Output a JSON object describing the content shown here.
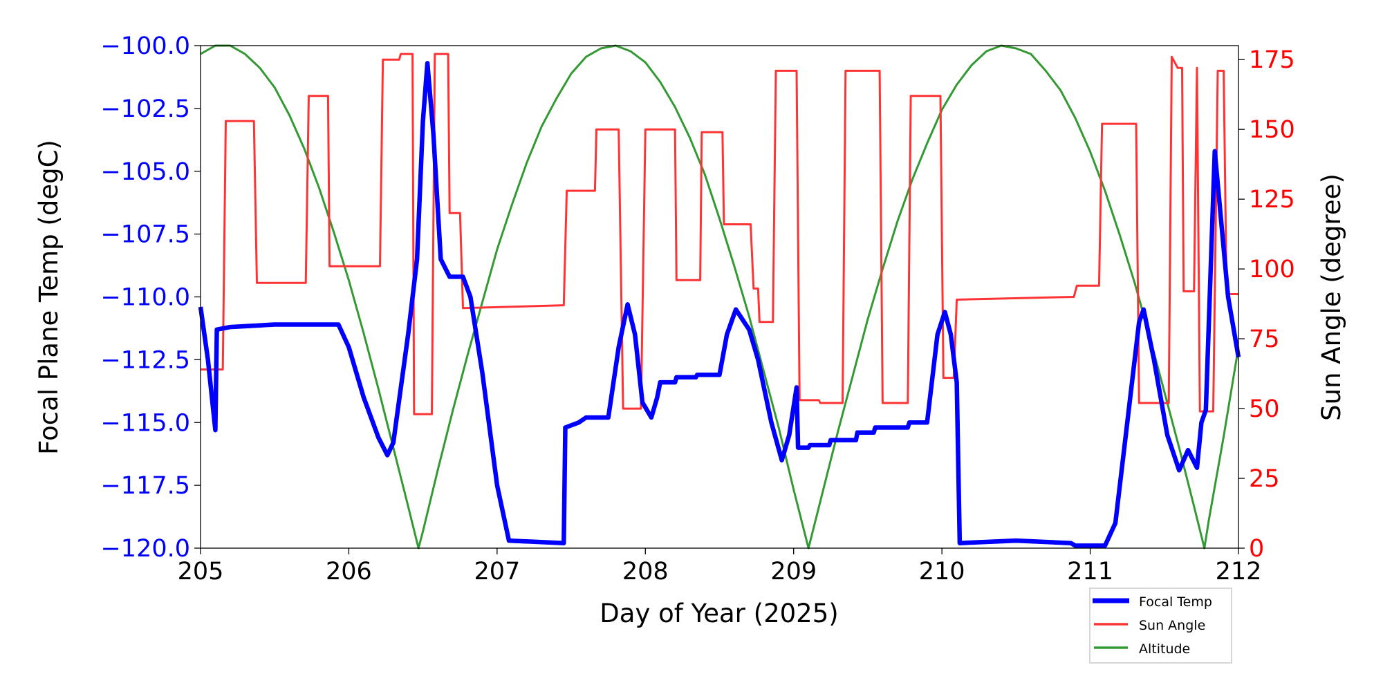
{
  "chart_data": {
    "type": "line",
    "xlabel": "Day of Year (2025)",
    "ylabel_left": "Focal Plane Temp (degC)",
    "ylabel_right": "Sun Angle (degree)",
    "xlim": [
      205,
      212
    ],
    "ylim_left": [
      -120,
      -100
    ],
    "ylim_right": [
      0,
      180
    ],
    "x_ticks": [
      205,
      206,
      207,
      208,
      209,
      210,
      211,
      212
    ],
    "y_ticks_left": [
      "−120.0",
      "−117.5",
      "−115.0",
      "−112.5",
      "−110.0",
      "−107.5",
      "−105.0",
      "−102.5",
      "−100.0"
    ],
    "y_ticks_left_values": [
      -120,
      -117.5,
      -115,
      -112.5,
      -110,
      -107.5,
      -105,
      -102.5,
      -100
    ],
    "y_ticks_right": [
      0,
      25,
      50,
      75,
      100,
      125,
      150,
      175
    ],
    "grid": false,
    "legend_placement": "below-right",
    "colors": {
      "left_ticks": "#0000ff",
      "right_ticks": "#ff0000"
    },
    "series": [
      {
        "name": "Focal Temp",
        "axis": "left",
        "color": "#0000ff",
        "points": [
          [
            205.0,
            -110.4
          ],
          [
            205.05,
            -112.5
          ],
          [
            205.1,
            -115.3
          ],
          [
            205.11,
            -111.3
          ],
          [
            205.2,
            -111.2
          ],
          [
            205.5,
            -111.1
          ],
          [
            205.93,
            -111.1
          ],
          [
            206.0,
            -112.0
          ],
          [
            206.1,
            -114.0
          ],
          [
            206.2,
            -115.6
          ],
          [
            206.26,
            -116.3
          ],
          [
            206.3,
            -115.8
          ],
          [
            206.4,
            -111.5
          ],
          [
            206.46,
            -108.5
          ],
          [
            206.5,
            -103.0
          ],
          [
            206.53,
            -100.7
          ],
          [
            206.57,
            -103.5
          ],
          [
            206.62,
            -108.5
          ],
          [
            206.68,
            -109.2
          ],
          [
            206.77,
            -109.2
          ],
          [
            206.82,
            -110.0
          ],
          [
            206.9,
            -113.0
          ],
          [
            207.0,
            -117.5
          ],
          [
            207.08,
            -119.7
          ],
          [
            207.45,
            -119.8
          ],
          [
            207.46,
            -115.2
          ],
          [
            207.55,
            -115.0
          ],
          [
            207.6,
            -114.8
          ],
          [
            207.75,
            -114.8
          ],
          [
            207.82,
            -112.0
          ],
          [
            207.88,
            -110.3
          ],
          [
            207.93,
            -111.5
          ],
          [
            207.98,
            -114.2
          ],
          [
            208.04,
            -114.8
          ],
          [
            208.08,
            -114.0
          ],
          [
            208.1,
            -113.4
          ],
          [
            208.2,
            -113.4
          ],
          [
            208.21,
            -113.2
          ],
          [
            208.34,
            -113.2
          ],
          [
            208.35,
            -113.1
          ],
          [
            208.5,
            -113.1
          ],
          [
            208.55,
            -111.5
          ],
          [
            208.61,
            -110.5
          ],
          [
            208.7,
            -111.3
          ],
          [
            208.76,
            -112.5
          ],
          [
            208.85,
            -115.0
          ],
          [
            208.92,
            -116.5
          ],
          [
            208.97,
            -115.5
          ],
          [
            209.02,
            -113.6
          ],
          [
            209.03,
            -116.0
          ],
          [
            209.1,
            -116.0
          ],
          [
            209.11,
            -115.9
          ],
          [
            209.24,
            -115.9
          ],
          [
            209.25,
            -115.7
          ],
          [
            209.42,
            -115.7
          ],
          [
            209.43,
            -115.4
          ],
          [
            209.54,
            -115.4
          ],
          [
            209.55,
            -115.2
          ],
          [
            209.77,
            -115.2
          ],
          [
            209.78,
            -115.0
          ],
          [
            209.9,
            -115.0
          ],
          [
            209.97,
            -111.5
          ],
          [
            210.02,
            -110.6
          ],
          [
            210.06,
            -111.5
          ],
          [
            210.1,
            -113.4
          ],
          [
            210.12,
            -119.8
          ],
          [
            210.5,
            -119.7
          ],
          [
            210.87,
            -119.8
          ],
          [
            210.9,
            -119.9
          ],
          [
            211.1,
            -119.9
          ],
          [
            211.17,
            -119.0
          ],
          [
            211.25,
            -115.0
          ],
          [
            211.33,
            -111.0
          ],
          [
            211.36,
            -110.5
          ],
          [
            211.43,
            -112.5
          ],
          [
            211.52,
            -115.5
          ],
          [
            211.6,
            -116.9
          ],
          [
            211.66,
            -116.1
          ],
          [
            211.72,
            -116.8
          ],
          [
            211.75,
            -115.0
          ],
          [
            211.78,
            -114.5
          ],
          [
            211.84,
            -104.2
          ],
          [
            211.93,
            -110.0
          ],
          [
            212.0,
            -112.4
          ]
        ]
      },
      {
        "name": "Sun Angle",
        "axis": "right",
        "color": "#ff3333",
        "points": [
          [
            205.0,
            64
          ],
          [
            205.15,
            64
          ],
          [
            205.17,
            153
          ],
          [
            205.36,
            153
          ],
          [
            205.38,
            95
          ],
          [
            205.71,
            95
          ],
          [
            205.73,
            162
          ],
          [
            205.86,
            162
          ],
          [
            205.87,
            101
          ],
          [
            206.21,
            101
          ],
          [
            206.23,
            175
          ],
          [
            206.34,
            175
          ],
          [
            206.35,
            177
          ],
          [
            206.43,
            177
          ],
          [
            206.44,
            48
          ],
          [
            206.56,
            48
          ],
          [
            206.58,
            177
          ],
          [
            206.67,
            177
          ],
          [
            206.68,
            120
          ],
          [
            206.75,
            120
          ],
          [
            206.77,
            86
          ],
          [
            207.45,
            87
          ],
          [
            207.47,
            128
          ],
          [
            207.66,
            128
          ],
          [
            207.67,
            150
          ],
          [
            207.82,
            150
          ],
          [
            207.85,
            50
          ],
          [
            207.97,
            50
          ],
          [
            208.0,
            150
          ],
          [
            208.2,
            150
          ],
          [
            208.21,
            96
          ],
          [
            208.37,
            96
          ],
          [
            208.38,
            149
          ],
          [
            208.52,
            149
          ],
          [
            208.53,
            116
          ],
          [
            208.71,
            116
          ],
          [
            208.73,
            93
          ],
          [
            208.76,
            93
          ],
          [
            208.77,
            81
          ],
          [
            208.86,
            81
          ],
          [
            208.88,
            171
          ],
          [
            209.02,
            171
          ],
          [
            209.04,
            53
          ],
          [
            209.17,
            53
          ],
          [
            209.18,
            52
          ],
          [
            209.33,
            52
          ],
          [
            209.35,
            171
          ],
          [
            209.58,
            171
          ],
          [
            209.6,
            52
          ],
          [
            209.77,
            52
          ],
          [
            209.79,
            162
          ],
          [
            209.99,
            162
          ],
          [
            210.01,
            61
          ],
          [
            210.08,
            61
          ],
          [
            210.1,
            89
          ],
          [
            210.89,
            90
          ],
          [
            210.91,
            94
          ],
          [
            211.06,
            94
          ],
          [
            211.08,
            152
          ],
          [
            211.31,
            152
          ],
          [
            211.33,
            52
          ],
          [
            211.53,
            52
          ],
          [
            211.55,
            176
          ],
          [
            211.59,
            172
          ],
          [
            211.62,
            172
          ],
          [
            211.63,
            92
          ],
          [
            211.7,
            92
          ],
          [
            211.72,
            172
          ],
          [
            211.74,
            49
          ],
          [
            211.83,
            49
          ],
          [
            211.86,
            171
          ],
          [
            211.9,
            171
          ],
          [
            211.92,
            91
          ],
          [
            212.0,
            91
          ]
        ]
      },
      {
        "name": "Altitude",
        "axis": "right",
        "color": "#339933",
        "points": [
          [
            205.0,
            177
          ],
          [
            205.1,
            180
          ],
          [
            205.2,
            180
          ],
          [
            205.3,
            177
          ],
          [
            205.4,
            172
          ],
          [
            205.5,
            165
          ],
          [
            205.6,
            155
          ],
          [
            205.7,
            143
          ],
          [
            205.8,
            129
          ],
          [
            205.9,
            113
          ],
          [
            206.0,
            96
          ],
          [
            206.1,
            77
          ],
          [
            206.2,
            57
          ],
          [
            206.3,
            36
          ],
          [
            206.4,
            15
          ],
          [
            206.47,
            0
          ],
          [
            206.5,
            6
          ],
          [
            206.6,
            28
          ],
          [
            206.7,
            49
          ],
          [
            206.8,
            69
          ],
          [
            206.9,
            88
          ],
          [
            207.0,
            107
          ],
          [
            207.1,
            123
          ],
          [
            207.2,
            138
          ],
          [
            207.3,
            151
          ],
          [
            207.4,
            161
          ],
          [
            207.5,
            170
          ],
          [
            207.6,
            176
          ],
          [
            207.7,
            179
          ],
          [
            207.8,
            180
          ],
          [
            207.9,
            178
          ],
          [
            208.0,
            174
          ],
          [
            208.1,
            167
          ],
          [
            208.2,
            158
          ],
          [
            208.3,
            147
          ],
          [
            208.4,
            134
          ],
          [
            208.5,
            118
          ],
          [
            208.6,
            101
          ],
          [
            208.7,
            83
          ],
          [
            208.8,
            63
          ],
          [
            208.9,
            43
          ],
          [
            209.0,
            21
          ],
          [
            209.1,
            0
          ],
          [
            209.2,
            21
          ],
          [
            209.3,
            42
          ],
          [
            209.4,
            62
          ],
          [
            209.5,
            82
          ],
          [
            209.6,
            100
          ],
          [
            209.7,
            117
          ],
          [
            209.8,
            132
          ],
          [
            209.9,
            145
          ],
          [
            210.0,
            157
          ],
          [
            210.1,
            166
          ],
          [
            210.2,
            173
          ],
          [
            210.3,
            178
          ],
          [
            210.4,
            180
          ],
          [
            210.5,
            179
          ],
          [
            210.6,
            177
          ],
          [
            210.7,
            171
          ],
          [
            210.8,
            164
          ],
          [
            210.9,
            154
          ],
          [
            211.0,
            142
          ],
          [
            211.1,
            128
          ],
          [
            211.2,
            112
          ],
          [
            211.3,
            95
          ],
          [
            211.4,
            76
          ],
          [
            211.5,
            56
          ],
          [
            211.6,
            36
          ],
          [
            211.7,
            15
          ],
          [
            211.77,
            0
          ],
          [
            211.8,
            10
          ],
          [
            211.9,
            40
          ],
          [
            212.0,
            72
          ]
        ]
      }
    ]
  }
}
